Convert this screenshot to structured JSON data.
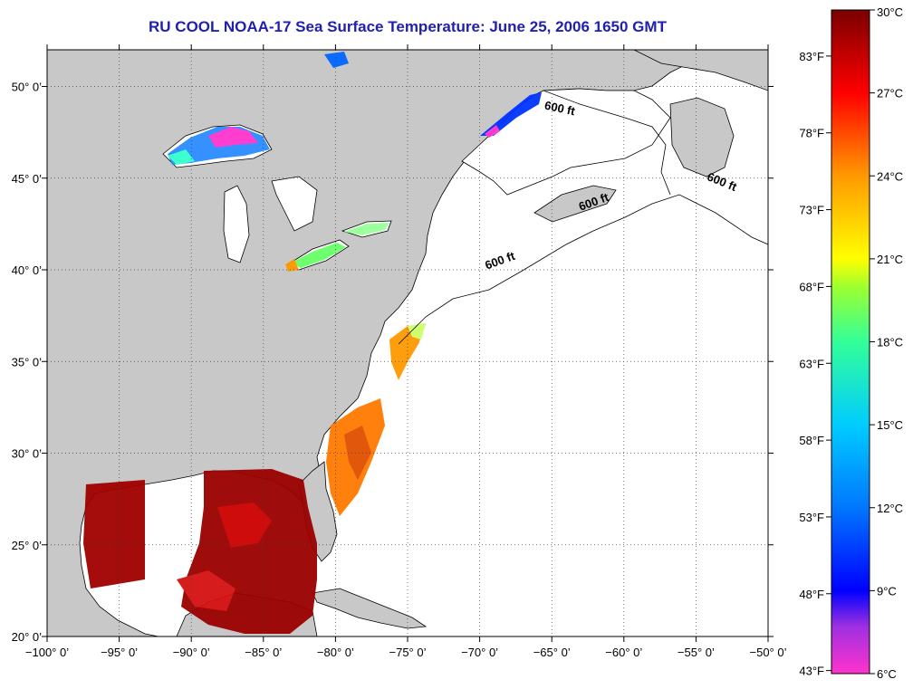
{
  "title": "RU COOL  NOAA-17  Sea Surface Temperature:  June 25, 2006 1650 GMT",
  "map": {
    "lon_range": [
      -100,
      -50
    ],
    "lat_range": [
      20,
      52
    ],
    "lon_ticks": [
      {
        "value": -100,
        "label": "−100° 0’"
      },
      {
        "value": -95,
        "label": "−95° 0’"
      },
      {
        "value": -90,
        "label": "−90° 0’"
      },
      {
        "value": -85,
        "label": "−85° 0’"
      },
      {
        "value": -80,
        "label": "−80° 0’"
      },
      {
        "value": -75,
        "label": "−75° 0’"
      },
      {
        "value": -70,
        "label": "−70° 0’"
      },
      {
        "value": -65,
        "label": "−65° 0’"
      },
      {
        "value": -60,
        "label": "−60° 0’"
      },
      {
        "value": -55,
        "label": "−55° 0’"
      },
      {
        "value": -50,
        "label": "−50° 0’"
      }
    ],
    "lat_ticks": [
      {
        "value": 20,
        "label": "20° 0’"
      },
      {
        "value": 25,
        "label": "25° 0’"
      },
      {
        "value": 30,
        "label": "30° 0’"
      },
      {
        "value": 35,
        "label": "35° 0’"
      },
      {
        "value": 40,
        "label": "40° 0’"
      },
      {
        "value": 45,
        "label": "45° 0’"
      },
      {
        "value": 50,
        "label": "50° 0’"
      }
    ],
    "contour_labels": [
      {
        "text": "600 ft",
        "lon": -64.5,
        "lat": 48.6,
        "rotate": 12
      },
      {
        "text": "600 ft",
        "lon": -53.3,
        "lat": 44.6,
        "rotate": 22
      },
      {
        "text": "600 ft",
        "lon": -62.0,
        "lat": 43.5,
        "rotate": -20
      },
      {
        "text": "600 ft",
        "lon": -68.5,
        "lat": 40.3,
        "rotate": -20
      }
    ],
    "land_color": "#c8c8c8",
    "ocean_color": "#ffffff",
    "grid": true
  },
  "colorbar": {
    "celsius_ticks": [
      {
        "value": 30,
        "label": "30°C"
      },
      {
        "value": 27,
        "label": "27°C"
      },
      {
        "value": 24,
        "label": "24°C"
      },
      {
        "value": 21,
        "label": "21°C"
      },
      {
        "value": 18,
        "label": "18°C"
      },
      {
        "value": 15,
        "label": "15°C"
      },
      {
        "value": 12,
        "label": "12°C"
      },
      {
        "value": 9,
        "label": "9°C"
      },
      {
        "value": 6,
        "label": "6°C"
      }
    ],
    "fahrenheit_ticks": [
      {
        "value": 83,
        "label": "83°F"
      },
      {
        "value": 78,
        "label": "78°F"
      },
      {
        "value": 73,
        "label": "73°F"
      },
      {
        "value": 68,
        "label": "68°F"
      },
      {
        "value": 63,
        "label": "63°F"
      },
      {
        "value": 58,
        "label": "58°F"
      },
      {
        "value": 53,
        "label": "53°F"
      },
      {
        "value": 48,
        "label": "48°F"
      },
      {
        "value": 43,
        "label": "43°F"
      }
    ],
    "range_c": [
      6,
      30
    ],
    "colors": [
      "#ff33cc",
      "#8833dd",
      "#0000ff",
      "#0066ff",
      "#00ccff",
      "#33ffcc",
      "#66ff66",
      "#ccff00",
      "#ffff00",
      "#ffaa00",
      "#ff5500",
      "#ff0000",
      "#b00000",
      "#7a0000"
    ]
  }
}
